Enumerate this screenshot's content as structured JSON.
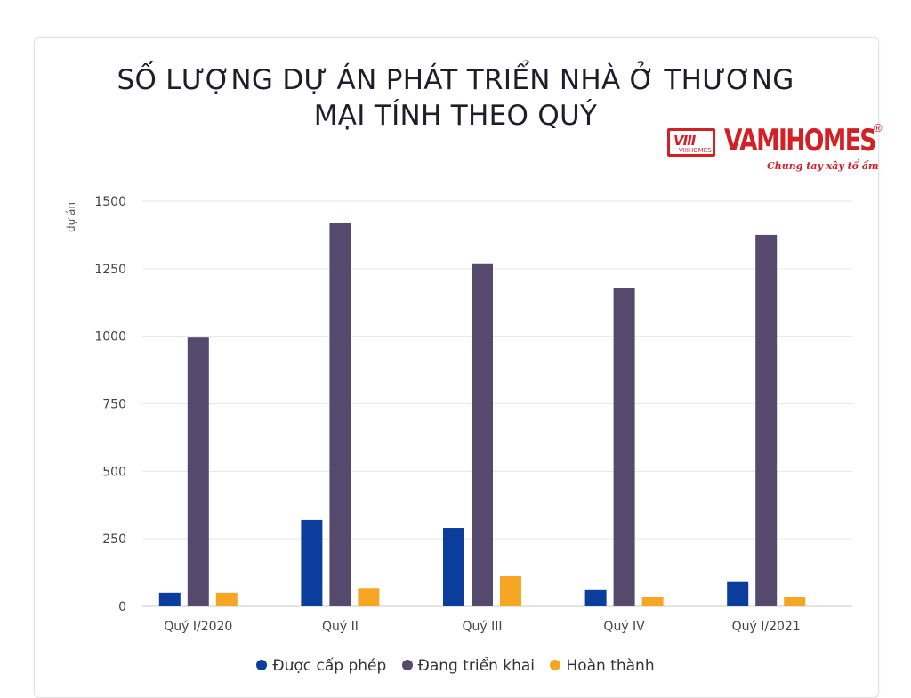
{
  "title_lines": [
    "SỐ LƯỢNG DỰ ÁN PHÁT TRIỂN NHÀ Ở THƯƠNG",
    "MẠI TÍNH THEO QUÝ"
  ],
  "logo": {
    "box_mark": "VIII",
    "box_text": "VIIIHOMES",
    "name": "VAMIHOMES",
    "registered": "®",
    "tagline": "Chung tay xây tổ ấm"
  },
  "chart_data": {
    "type": "bar",
    "title": "SỐ LƯỢNG DỰ ÁN PHÁT TRIỂN NHÀ Ở THƯƠNG MẠI TÍNH THEO QUÝ",
    "xlabel": "",
    "ylabel": "dự án",
    "ylim": [
      0,
      1500
    ],
    "yticks": [
      0,
      250,
      500,
      750,
      1000,
      1250,
      1500
    ],
    "ytick_labels": [
      "0",
      "250",
      "500",
      "750",
      "1000",
      "1250",
      "1500"
    ],
    "grid": true,
    "legend_position": "bottom",
    "categories": [
      "Quý I/2020",
      "Quý II",
      "Quý III",
      "Quý IV",
      "Quý I/2021"
    ],
    "series": [
      {
        "name": "Được cấp phép",
        "color": "#0b3d9c",
        "values": [
          50,
          320,
          290,
          60,
          90
        ]
      },
      {
        "name": "Đang triển khai",
        "color": "#55496e",
        "values": [
          995,
          1420,
          1270,
          1180,
          1375
        ]
      },
      {
        "name": "Hoàn thành",
        "color": "#f5a623",
        "values": [
          50,
          65,
          112,
          35,
          35
        ]
      }
    ]
  }
}
